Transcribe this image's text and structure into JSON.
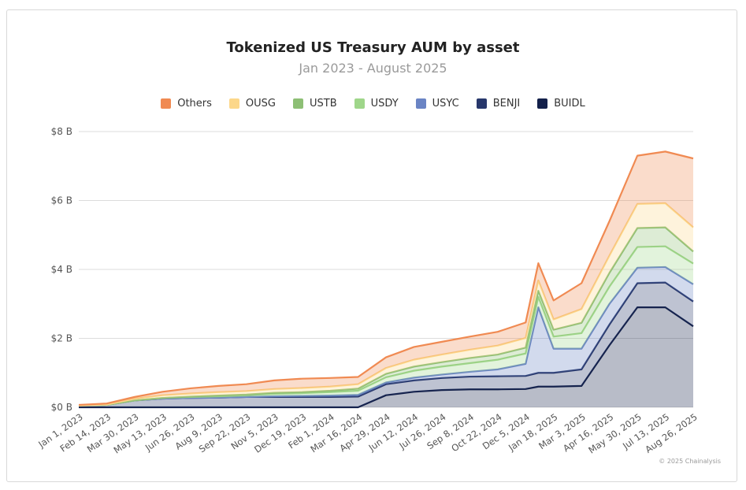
{
  "chart_data": {
    "type": "area",
    "stacked": true,
    "title": "Tokenized US Treasury AUM by asset",
    "subtitle": "Jan 2023 - August 2025",
    "xlabel": "",
    "ylabel": "",
    "ylim": [
      0,
      8
    ],
    "y_unit": "B",
    "y_ticks": [
      {
        "value": 0,
        "label": "$0 B"
      },
      {
        "value": 2,
        "label": "$2 B"
      },
      {
        "value": 4,
        "label": "$4 B"
      },
      {
        "value": 6,
        "label": "$6 B"
      },
      {
        "value": 8,
        "label": "$8 B"
      }
    ],
    "x_tick_labels": [
      "Jan 1, 2023",
      "Feb 14, 2023",
      "Mar 30, 2023",
      "May 13, 2023",
      "Jun 26, 2023",
      "Aug 9, 2023",
      "Sep 22, 2023",
      "Nov 5, 2023",
      "Dec 19, 2023",
      "Feb 1, 2024",
      "Mar 16, 2024",
      "Apr 29, 2024",
      "Jun 12, 2024",
      "Jul 26, 2024",
      "Sep 8, 2024",
      "Oct 22, 2024",
      "Dec 5, 2024",
      "Jan 18, 2025",
      "Mar 3, 2025",
      "Apr 16, 2025",
      "May 30, 2025",
      "Jul 13, 2025",
      "Aug 26, 2025"
    ],
    "x": [
      "2023-01-01",
      "2023-02-14",
      "2023-03-30",
      "2023-05-13",
      "2023-06-26",
      "2023-08-09",
      "2023-09-22",
      "2023-11-05",
      "2023-12-19",
      "2024-02-01",
      "2024-03-16",
      "2024-04-29",
      "2024-06-12",
      "2024-07-26",
      "2024-09-08",
      "2024-10-22",
      "2024-12-05",
      "2024-12-25",
      "2025-01-18",
      "2025-03-03",
      "2025-04-16",
      "2025-05-30",
      "2025-07-13",
      "2025-08-26"
    ],
    "grid": true,
    "legend_position": "top-center",
    "series": [
      {
        "name": "BUIDL",
        "color": "#13204a",
        "values": [
          0.0,
          0.0,
          0.0,
          0.0,
          0.0,
          0.0,
          0.0,
          0.0,
          0.0,
          0.0,
          0.0,
          0.35,
          0.45,
          0.5,
          0.52,
          0.52,
          0.53,
          0.6,
          0.6,
          0.62,
          1.8,
          2.9,
          2.9,
          2.35
        ]
      },
      {
        "name": "BENJI",
        "color": "#27376b",
        "values": [
          0.05,
          0.07,
          0.2,
          0.25,
          0.27,
          0.28,
          0.3,
          0.3,
          0.3,
          0.3,
          0.31,
          0.32,
          0.33,
          0.35,
          0.37,
          0.38,
          0.38,
          0.4,
          0.4,
          0.48,
          0.6,
          0.7,
          0.72,
          0.72
        ]
      },
      {
        "name": "USYC",
        "color": "#6a84c4",
        "values": [
          0.0,
          0.0,
          0.0,
          0.0,
          0.0,
          0.0,
          0.0,
          0.02,
          0.03,
          0.04,
          0.05,
          0.05,
          0.08,
          0.1,
          0.14,
          0.2,
          0.35,
          1.9,
          0.7,
          0.6,
          0.6,
          0.45,
          0.45,
          0.5
        ]
      },
      {
        "name": "USDY",
        "color": "#9fd68a",
        "values": [
          0.0,
          0.0,
          0.0,
          0.02,
          0.03,
          0.04,
          0.05,
          0.07,
          0.08,
          0.1,
          0.12,
          0.15,
          0.2,
          0.23,
          0.25,
          0.28,
          0.3,
          0.3,
          0.35,
          0.45,
          0.5,
          0.6,
          0.6,
          0.6
        ]
      },
      {
        "name": "USTB",
        "color": "#8dbf75",
        "values": [
          0.0,
          0.0,
          0.0,
          0.0,
          0.01,
          0.02,
          0.02,
          0.03,
          0.03,
          0.04,
          0.06,
          0.1,
          0.12,
          0.13,
          0.15,
          0.15,
          0.17,
          0.18,
          0.2,
          0.3,
          0.4,
          0.55,
          0.55,
          0.35
        ]
      },
      {
        "name": "OUSG",
        "color": "#fcd78a",
        "values": [
          0.0,
          0.01,
          0.05,
          0.08,
          0.09,
          0.1,
          0.1,
          0.11,
          0.12,
          0.12,
          0.13,
          0.17,
          0.2,
          0.22,
          0.24,
          0.26,
          0.28,
          0.3,
          0.3,
          0.4,
          0.5,
          0.7,
          0.7,
          0.7
        ]
      },
      {
        "name": "Others",
        "color": "#f08a52",
        "values": [
          0.02,
          0.03,
          0.05,
          0.1,
          0.15,
          0.18,
          0.2,
          0.25,
          0.27,
          0.25,
          0.21,
          0.31,
          0.37,
          0.37,
          0.38,
          0.4,
          0.45,
          0.5,
          0.55,
          0.75,
          1.0,
          1.4,
          1.5,
          2.0
        ]
      }
    ],
    "legend_order": [
      "Others",
      "OUSG",
      "USTB",
      "USDY",
      "USYC",
      "BENJI",
      "BUIDL"
    ]
  },
  "copyright": "© 2025 Chainalysis"
}
